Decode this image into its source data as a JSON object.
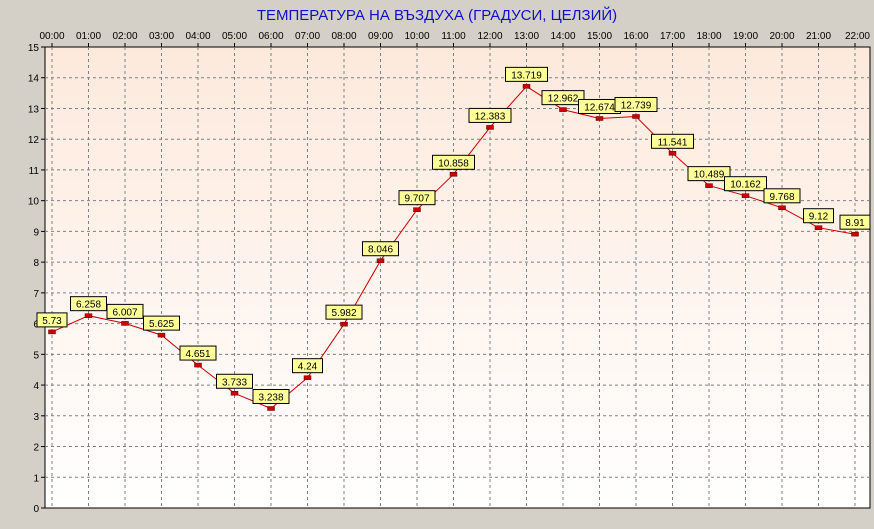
{
  "chart_data": {
    "type": "line",
    "title": "ТЕМПЕРАТУРА НА ВЪЗДУХА  (ГРАДУСИ, ЦЕЛЗИЙ)",
    "xlabel": "",
    "ylabel": "",
    "x": [
      "00:00",
      "01:00",
      "02:00",
      "03:00",
      "04:00",
      "05:00",
      "06:00",
      "07:00",
      "08:00",
      "09:00",
      "10:00",
      "11:00",
      "12:00",
      "13:00",
      "14:00",
      "15:00",
      "16:00",
      "17:00",
      "18:00",
      "19:00",
      "20:00",
      "21:00",
      "22:00"
    ],
    "yticks": [
      "0",
      "1",
      "2",
      "3",
      "4",
      "5",
      "6",
      "7",
      "8",
      "9",
      "10",
      "11",
      "12",
      "13",
      "14",
      "15"
    ],
    "series": [
      {
        "values": [
          5.73,
          6.258,
          6.007,
          5.625,
          4.651,
          3.733,
          3.238,
          4.24,
          5.982,
          8.046,
          9.707,
          10.858,
          12.383,
          13.719,
          12.962,
          12.674,
          12.739,
          11.541,
          10.489,
          10.162,
          9.768,
          9.12,
          8.91
        ],
        "labels": [
          "5.73",
          "6.258",
          "6.007",
          "5.625",
          "4.651",
          "3.733",
          "3.238",
          "4.24",
          "5.982",
          "8.046",
          "9.707",
          "10.858",
          "12.383",
          "13.719",
          "12.962",
          "12.674",
          "12.739",
          "11.541",
          "10.489",
          "10.162",
          "9.768",
          "9.12",
          "8.91"
        ],
        "color": "#cc0000"
      }
    ],
    "ylim": [
      0,
      15
    ],
    "grid": true,
    "x_axis_position": "top",
    "colors": {
      "background": "#d4d0c8",
      "plot_top": "#fde9dc",
      "plot_bottom": "#ffffff",
      "grid": "#808080",
      "line": "#cc0000",
      "marker": "#cc0000",
      "label_bg": "#ffff99",
      "title": "#1010c8"
    }
  }
}
